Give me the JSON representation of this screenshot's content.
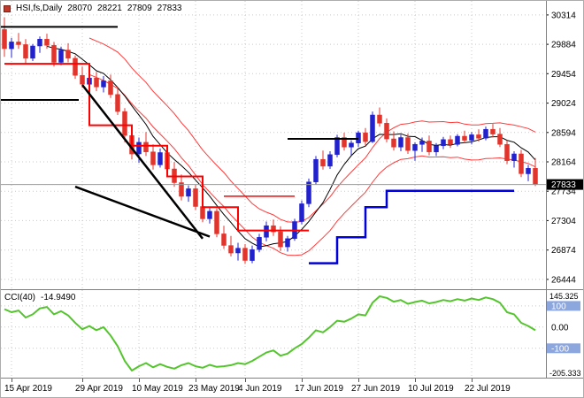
{
  "header": {
    "symbol": "HSI,fs,Daily",
    "open": "28070",
    "high": "28221",
    "low": "27809",
    "close": "27833"
  },
  "colors": {
    "background": "#FFFFFF",
    "grid": "#C9C9C9",
    "axis_text": "#000000",
    "separator": "#808080",
    "bull": "#2121CE",
    "bear": "#E3342C",
    "ma_black": "#000000",
    "band_red": "#FF3A3A",
    "step_red": "#FF0000",
    "step_blue": "#0000D8",
    "trendline": "#000000",
    "current_price_line": "#9A9A9A",
    "price_tag_bg": "#000000",
    "price_tag_text": "#FFFFFF",
    "cci_line": "#55C52E",
    "level_box": "#8CA6DE",
    "level_box_text": "#FFFFFF",
    "symbol_icon": "#C0392B"
  },
  "chart_data": [
    {
      "type": "candlestick",
      "title": "HSI,fs,Daily",
      "ohlc_current": {
        "open": 28070,
        "high": 28221,
        "low": 27809,
        "close": 27833
      },
      "ylim": [
        26300,
        30520
      ],
      "y_ticks": [
        30314,
        29884,
        29454,
        29024,
        28594,
        28164,
        27734,
        27304,
        26874,
        26444
      ],
      "x_ticks": [
        {
          "i": 1,
          "label": "15 Apr 2019"
        },
        {
          "i": 11,
          "label": "29 Apr 2019"
        },
        {
          "i": 19,
          "label": "10 May 2019"
        },
        {
          "i": 27,
          "label": "23 May 2019"
        },
        {
          "i": 34,
          "label": "4 Jun 2019"
        },
        {
          "i": 42,
          "label": "17 Jun 2019"
        },
        {
          "i": 50,
          "label": "27 Jun 2019"
        },
        {
          "i": 58,
          "label": "10 Jul 2019"
        },
        {
          "i": 66,
          "label": "22 Jul 2019"
        }
      ],
      "price_tag": 27833,
      "grid": "dotted",
      "legend_position": "top-left",
      "candles": [
        [
          30100,
          30280,
          29700,
          29820
        ],
        [
          29820,
          29980,
          29690,
          29920
        ],
        [
          29920,
          30050,
          29820,
          29880
        ],
        [
          29880,
          29960,
          29600,
          29680
        ],
        [
          29680,
          29890,
          29640,
          29860
        ],
        [
          29860,
          30000,
          29760,
          29960
        ],
        [
          29960,
          30040,
          29820,
          29870
        ],
        [
          29870,
          29920,
          29560,
          29620
        ],
        [
          29620,
          29850,
          29580,
          29800
        ],
        [
          29800,
          29900,
          29620,
          29680
        ],
        [
          29680,
          29720,
          29380,
          29430
        ],
        [
          29430,
          29560,
          29250,
          29300
        ],
        [
          29300,
          29450,
          29150,
          29390
        ],
        [
          29390,
          29480,
          29200,
          29260
        ],
        [
          29260,
          29420,
          29180,
          29350
        ],
        [
          29350,
          29440,
          29100,
          29150
        ],
        [
          29150,
          29260,
          28850,
          28900
        ],
        [
          28900,
          28950,
          28450,
          28550
        ],
        [
          28550,
          28690,
          28200,
          28280
        ],
        [
          28280,
          28520,
          28150,
          28450
        ],
        [
          28450,
          28600,
          28250,
          28310
        ],
        [
          28310,
          28420,
          28050,
          28120
        ],
        [
          28120,
          28360,
          28080,
          28300
        ],
        [
          28300,
          28380,
          28000,
          28060
        ],
        [
          28060,
          28160,
          27800,
          27860
        ],
        [
          27860,
          27980,
          27600,
          27660
        ],
        [
          27660,
          27820,
          27580,
          27770
        ],
        [
          27770,
          27830,
          27460,
          27510
        ],
        [
          27510,
          27640,
          27280,
          27330
        ],
        [
          27330,
          27500,
          27260,
          27440
        ],
        [
          27440,
          27480,
          27060,
          27110
        ],
        [
          27110,
          27230,
          26890,
          26940
        ],
        [
          26940,
          27080,
          26780,
          26830
        ],
        [
          26830,
          26980,
          26720,
          26900
        ],
        [
          26900,
          26960,
          26670,
          26720
        ],
        [
          26720,
          26940,
          26680,
          26880
        ],
        [
          26880,
          27110,
          26840,
          27060
        ],
        [
          27060,
          27290,
          27000,
          27230
        ],
        [
          27230,
          27320,
          27080,
          27140
        ],
        [
          27140,
          27220,
          26860,
          26920
        ],
        [
          26920,
          27080,
          26850,
          27040
        ],
        [
          27040,
          27330,
          27010,
          27290
        ],
        [
          27290,
          27600,
          27250,
          27550
        ],
        [
          27550,
          27920,
          27500,
          27870
        ],
        [
          27870,
          28250,
          27830,
          28200
        ],
        [
          28200,
          28330,
          28050,
          28100
        ],
        [
          28100,
          28320,
          28060,
          28270
        ],
        [
          28270,
          28560,
          28230,
          28520
        ],
        [
          28520,
          28590,
          28330,
          28380
        ],
        [
          28380,
          28480,
          28260,
          28440
        ],
        [
          28440,
          28620,
          28380,
          28590
        ],
        [
          28590,
          28660,
          28400,
          28460
        ],
        [
          28460,
          28900,
          28440,
          28850
        ],
        [
          28850,
          28960,
          28680,
          28730
        ],
        [
          28730,
          28800,
          28450,
          28500
        ],
        [
          28500,
          28610,
          28330,
          28380
        ],
        [
          28380,
          28560,
          28320,
          28520
        ],
        [
          28520,
          28580,
          28280,
          28330
        ],
        [
          28330,
          28450,
          28180,
          28420
        ],
        [
          28420,
          28520,
          28310,
          28470
        ],
        [
          28470,
          28550,
          28260,
          28310
        ],
        [
          28310,
          28440,
          28250,
          28400
        ],
        [
          28400,
          28530,
          28350,
          28490
        ],
        [
          28490,
          28550,
          28370,
          28420
        ],
        [
          28420,
          28570,
          28390,
          28540
        ],
        [
          28540,
          28620,
          28440,
          28480
        ],
        [
          28480,
          28600,
          28420,
          28560
        ],
        [
          28560,
          28640,
          28460,
          28510
        ],
        [
          28510,
          28680,
          28480,
          28640
        ],
        [
          28640,
          28720,
          28520,
          28570
        ],
        [
          28570,
          28660,
          28380,
          28420
        ],
        [
          28420,
          28480,
          28130,
          28180
        ],
        [
          28180,
          28320,
          28080,
          28280
        ],
        [
          28280,
          28340,
          27940,
          27990
        ],
        [
          27990,
          28120,
          27880,
          28070
        ],
        [
          28070,
          28221,
          27809,
          27833
        ]
      ],
      "overlays": {
        "ma_fast_period": 7,
        "envelope_period": 13,
        "envelope_offset": 0.009,
        "red_step": [
          [
            0,
            29600
          ],
          [
            12,
            29600
          ],
          [
            12,
            28700
          ],
          [
            18,
            28700
          ],
          [
            18,
            28400
          ],
          [
            23,
            28400
          ],
          [
            23,
            27950
          ],
          [
            28,
            27950
          ],
          [
            28,
            27500
          ],
          [
            33,
            27500
          ],
          [
            33,
            27160
          ],
          [
            43,
            27160
          ]
        ],
        "blue_step": [
          [
            43,
            26680
          ],
          [
            47,
            26680
          ],
          [
            47,
            27060
          ],
          [
            51,
            27060
          ],
          [
            51,
            27500
          ],
          [
            54,
            27500
          ],
          [
            54,
            27740
          ],
          [
            72,
            27740
          ]
        ],
        "trendlines": [
          {
            "from": [
              11,
              29290
            ],
            "to": [
              28,
              27040
            ]
          },
          {
            "from": [
              10,
              27800
            ],
            "to": [
              29,
              27070
            ]
          }
        ],
        "hlines": [
          {
            "price": 30140,
            "i1": -0.5,
            "i2": 16,
            "color": "#000000",
            "width": 2
          },
          {
            "price": 29070,
            "i1": -0.5,
            "i2": 10.5,
            "color": "#000000",
            "width": 2
          },
          {
            "price": 28500,
            "i1": 40,
            "i2": 50,
            "color": "#000000",
            "width": 2
          },
          {
            "price": 27660,
            "i1": 31,
            "i2": 41,
            "color": "#FF0000",
            "width": 1.5
          },
          {
            "price": 27833,
            "i1": -0.5,
            "i2": 77,
            "color": "#9A9A9A",
            "width": 1
          }
        ]
      }
    },
    {
      "type": "line",
      "title": "CCI(40)",
      "label_value": "-14.9490",
      "ylim": [
        -205.333,
        145.325
      ],
      "levels": [
        100,
        0,
        -100
      ],
      "scale_labels": {
        "top": "145.325",
        "upper": "100",
        "zero": "0.00",
        "lower": "-100",
        "bottom": "-205.333"
      },
      "values": [
        85,
        70,
        78,
        45,
        60,
        88,
        95,
        60,
        75,
        55,
        20,
        -10,
        5,
        -15,
        0,
        -40,
        -90,
        -160,
        -205.333,
        -185,
        -170,
        -190,
        -175,
        -188,
        -196,
        -180,
        -170,
        -185,
        -192,
        -178,
        -188,
        -185,
        -180,
        -170,
        -175,
        -160,
        -140,
        -120,
        -110,
        -135,
        -125,
        -100,
        -80,
        -50,
        -15,
        -25,
        0,
        30,
        25,
        40,
        60,
        55,
        115,
        145.325,
        138,
        120,
        128,
        110,
        118,
        125,
        112,
        118,
        128,
        122,
        132,
        125,
        135,
        128,
        140,
        132,
        115,
        70,
        60,
        20,
        5,
        -14.949
      ]
    }
  ]
}
